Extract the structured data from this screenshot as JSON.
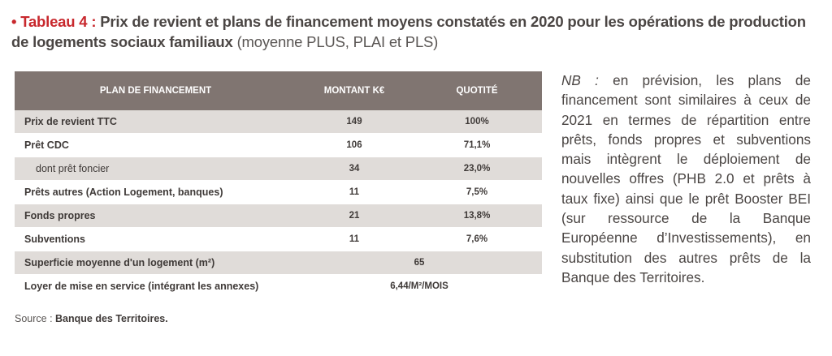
{
  "title": {
    "bullet": "• Tableau 4 :",
    "main": "Prix de revient et plans de financement moyens constatés en 2020 pour les opérations de production de logements sociaux familiaux",
    "note": "(moyenne PLUS, PLAI et PLS)"
  },
  "table": {
    "headers": [
      "PLAN DE FINANCEMENT",
      "MONTANT K€",
      "QUOTITÉ"
    ],
    "rows": [
      {
        "label": "Prix de revient TTC",
        "montant": "149",
        "quotite": "100%"
      },
      {
        "label": "Prêt CDC",
        "montant": "106",
        "quotite": "71,1%"
      },
      {
        "label": "dont prêt foncier",
        "montant": "34",
        "quotite": "23,0%"
      },
      {
        "label": "Prêts autres (Action Logement, banques)",
        "montant": "11",
        "quotite": "7,5%"
      },
      {
        "label": "Fonds propres",
        "montant": "21",
        "quotite": "13,8%"
      },
      {
        "label": "Subventions",
        "montant": "11",
        "quotite": "7,6%"
      },
      {
        "label": "Superficie moyenne d'un logement (m²)",
        "value": "65"
      },
      {
        "label": "Loyer de mise en service (intégrant les annexes)",
        "value": "6,44/M²/MOIS"
      }
    ]
  },
  "source": {
    "prefix": "Source : ",
    "name": "Banque des Territoires."
  },
  "nb": {
    "label": "NB :",
    "text": "en prévision, les plans de financement sont similaires à ceux de 2021 en termes de répartition entre prêts, fonds propres et subventions mais intègrent le déploiement de nouvelles offres (PHB 2.0 et prêts à taux fixe) ainsi que le prêt Booster BEI (sur ressource de la Banque Européenne d’Investissements), en substitution des autres prêts de la Banque des Territoires."
  }
}
